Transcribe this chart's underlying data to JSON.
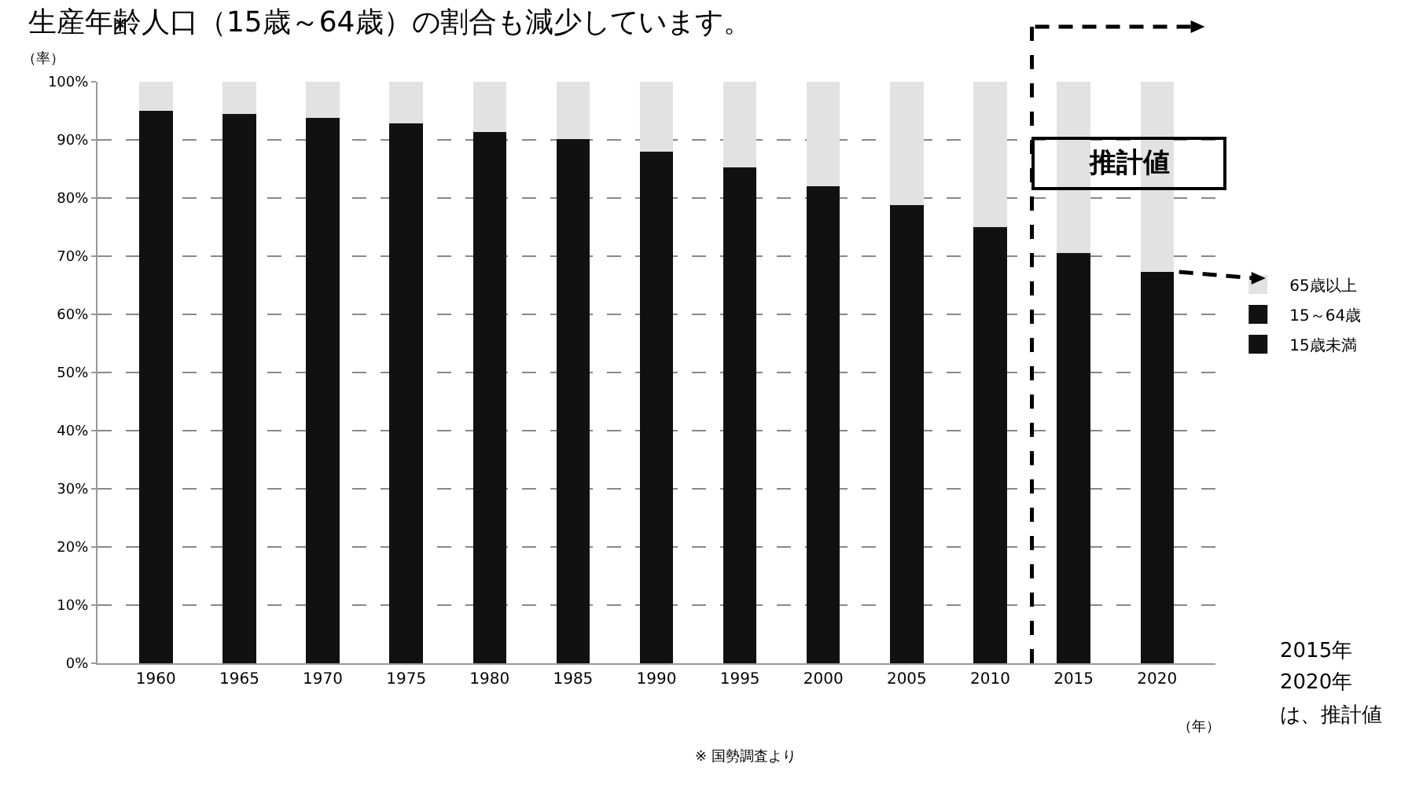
{
  "chart_data": {
    "type": "bar",
    "stacked": true,
    "title": "生産年齢人口（15歳～64歳）の割合も減少しています。",
    "ylabel": "（率）",
    "xlabel": "（年）",
    "x": [
      1960,
      1965,
      1970,
      1975,
      1980,
      1985,
      1990,
      1995,
      2000,
      2005,
      2010,
      2015,
      2020
    ],
    "xlim": [
      1956.5,
      2023.5
    ],
    "xticks": [
      1960,
      1965,
      1970,
      1975,
      1980,
      1985,
      1990,
      1995,
      2000,
      2005,
      2010,
      2015,
      2020
    ],
    "ylim": [
      0,
      100
    ],
    "yticks": [
      {
        "value": 0,
        "label": "0%"
      },
      {
        "value": 10,
        "label": "10%"
      },
      {
        "value": 20,
        "label": "20%"
      },
      {
        "value": 30,
        "label": "30%"
      },
      {
        "value": 40,
        "label": "40%"
      },
      {
        "value": 50,
        "label": "50%"
      },
      {
        "value": 60,
        "label": "60%"
      },
      {
        "value": 70,
        "label": "70%"
      },
      {
        "value": 80,
        "label": "80%"
      },
      {
        "value": 90,
        "label": "90%"
      },
      {
        "value": 100,
        "label": "100%"
      }
    ],
    "series": [
      {
        "name": "15歳未満",
        "color": "#111111",
        "values": [
          95,
          94.5,
          93.8,
          92.8,
          91.4,
          90.1,
          88,
          85.3,
          82,
          78.8,
          75,
          70.5,
          67.3
        ]
      },
      {
        "name": "15～64歳",
        "color": "#111111",
        "values": [
          null,
          null,
          null,
          null,
          null,
          null,
          null,
          null,
          null,
          null,
          null,
          null,
          null
        ]
      },
      {
        "name": "65歳以上",
        "color": "#e2e2e2",
        "values": [
          5,
          5.5,
          6.2,
          7.2,
          8.6,
          9.9,
          12,
          14.7,
          18,
          21.2,
          25,
          29.5,
          32.7
        ]
      }
    ],
    "ref_lines": [
      {
        "axis": "x",
        "value": 2012.5,
        "label": "推計値",
        "color": "#000000",
        "line_style": "dashed"
      }
    ],
    "annotations": [
      "2015年",
      "2020年",
      "は、推計値",
      "※ 国勢調査より"
    ],
    "grid": "y",
    "legend": "right"
  }
}
